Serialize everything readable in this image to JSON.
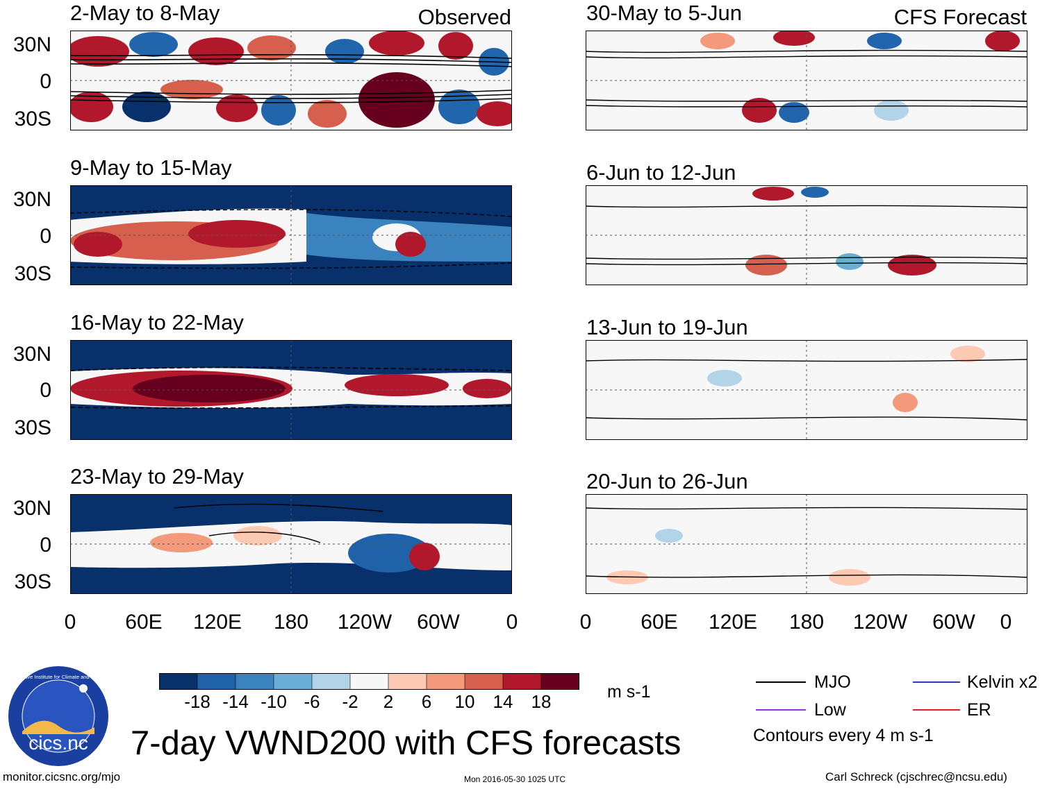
{
  "header": {
    "observed_label": "Observed",
    "forecast_label": "CFS Forecast"
  },
  "observed_panels": [
    {
      "title": "2-May to 8-May"
    },
    {
      "title": "9-May to 15-May"
    },
    {
      "title": "16-May to 22-May"
    },
    {
      "title": "23-May to 29-May"
    }
  ],
  "forecast_panels": [
    {
      "title": "30-May to 5-Jun"
    },
    {
      "title": "6-Jun to 12-Jun"
    },
    {
      "title": "13-Jun to 19-Jun"
    },
    {
      "title": "20-Jun to 26-Jun"
    }
  ],
  "y_ticks": [
    "30N",
    "0",
    "30S"
  ],
  "x_ticks": [
    "0",
    "60E",
    "120E",
    "180",
    "120W",
    "60W",
    "0"
  ],
  "colorbar": {
    "ticks": [
      "-18",
      "-14",
      "-10",
      "-6",
      "-2",
      "2",
      "6",
      "10",
      "14",
      "18"
    ],
    "colors": [
      "#08306b",
      "#1f62a8",
      "#3a83bf",
      "#6aaed6",
      "#b3d3e8",
      "#f7f7f7",
      "#fcc9b3",
      "#f49a7c",
      "#d6604d",
      "#b2182b",
      "#67001f"
    ],
    "unit": "m s-1"
  },
  "legend": {
    "items": [
      {
        "label": "MJO",
        "color": "#000000"
      },
      {
        "label": "Kelvin x2",
        "color": "#1f3fbf"
      },
      {
        "label": "Low",
        "color": "#9b30e0"
      },
      {
        "label": "ER",
        "color": "#e02020"
      }
    ],
    "note": "Contours every 4 m s-1"
  },
  "logo": {
    "text": "cics.nc",
    "ring_text": "Cooperative Institute for Climate and Satellites"
  },
  "main_title": "7-day VWND200 with CFS forecasts",
  "footer": {
    "url": "monitor.cicsnc.org/mjo",
    "timestamp": "Mon 2016-05-30 1025 UTC",
    "author": "Carl Schreck (cjschrec@ncsu.edu)"
  }
}
